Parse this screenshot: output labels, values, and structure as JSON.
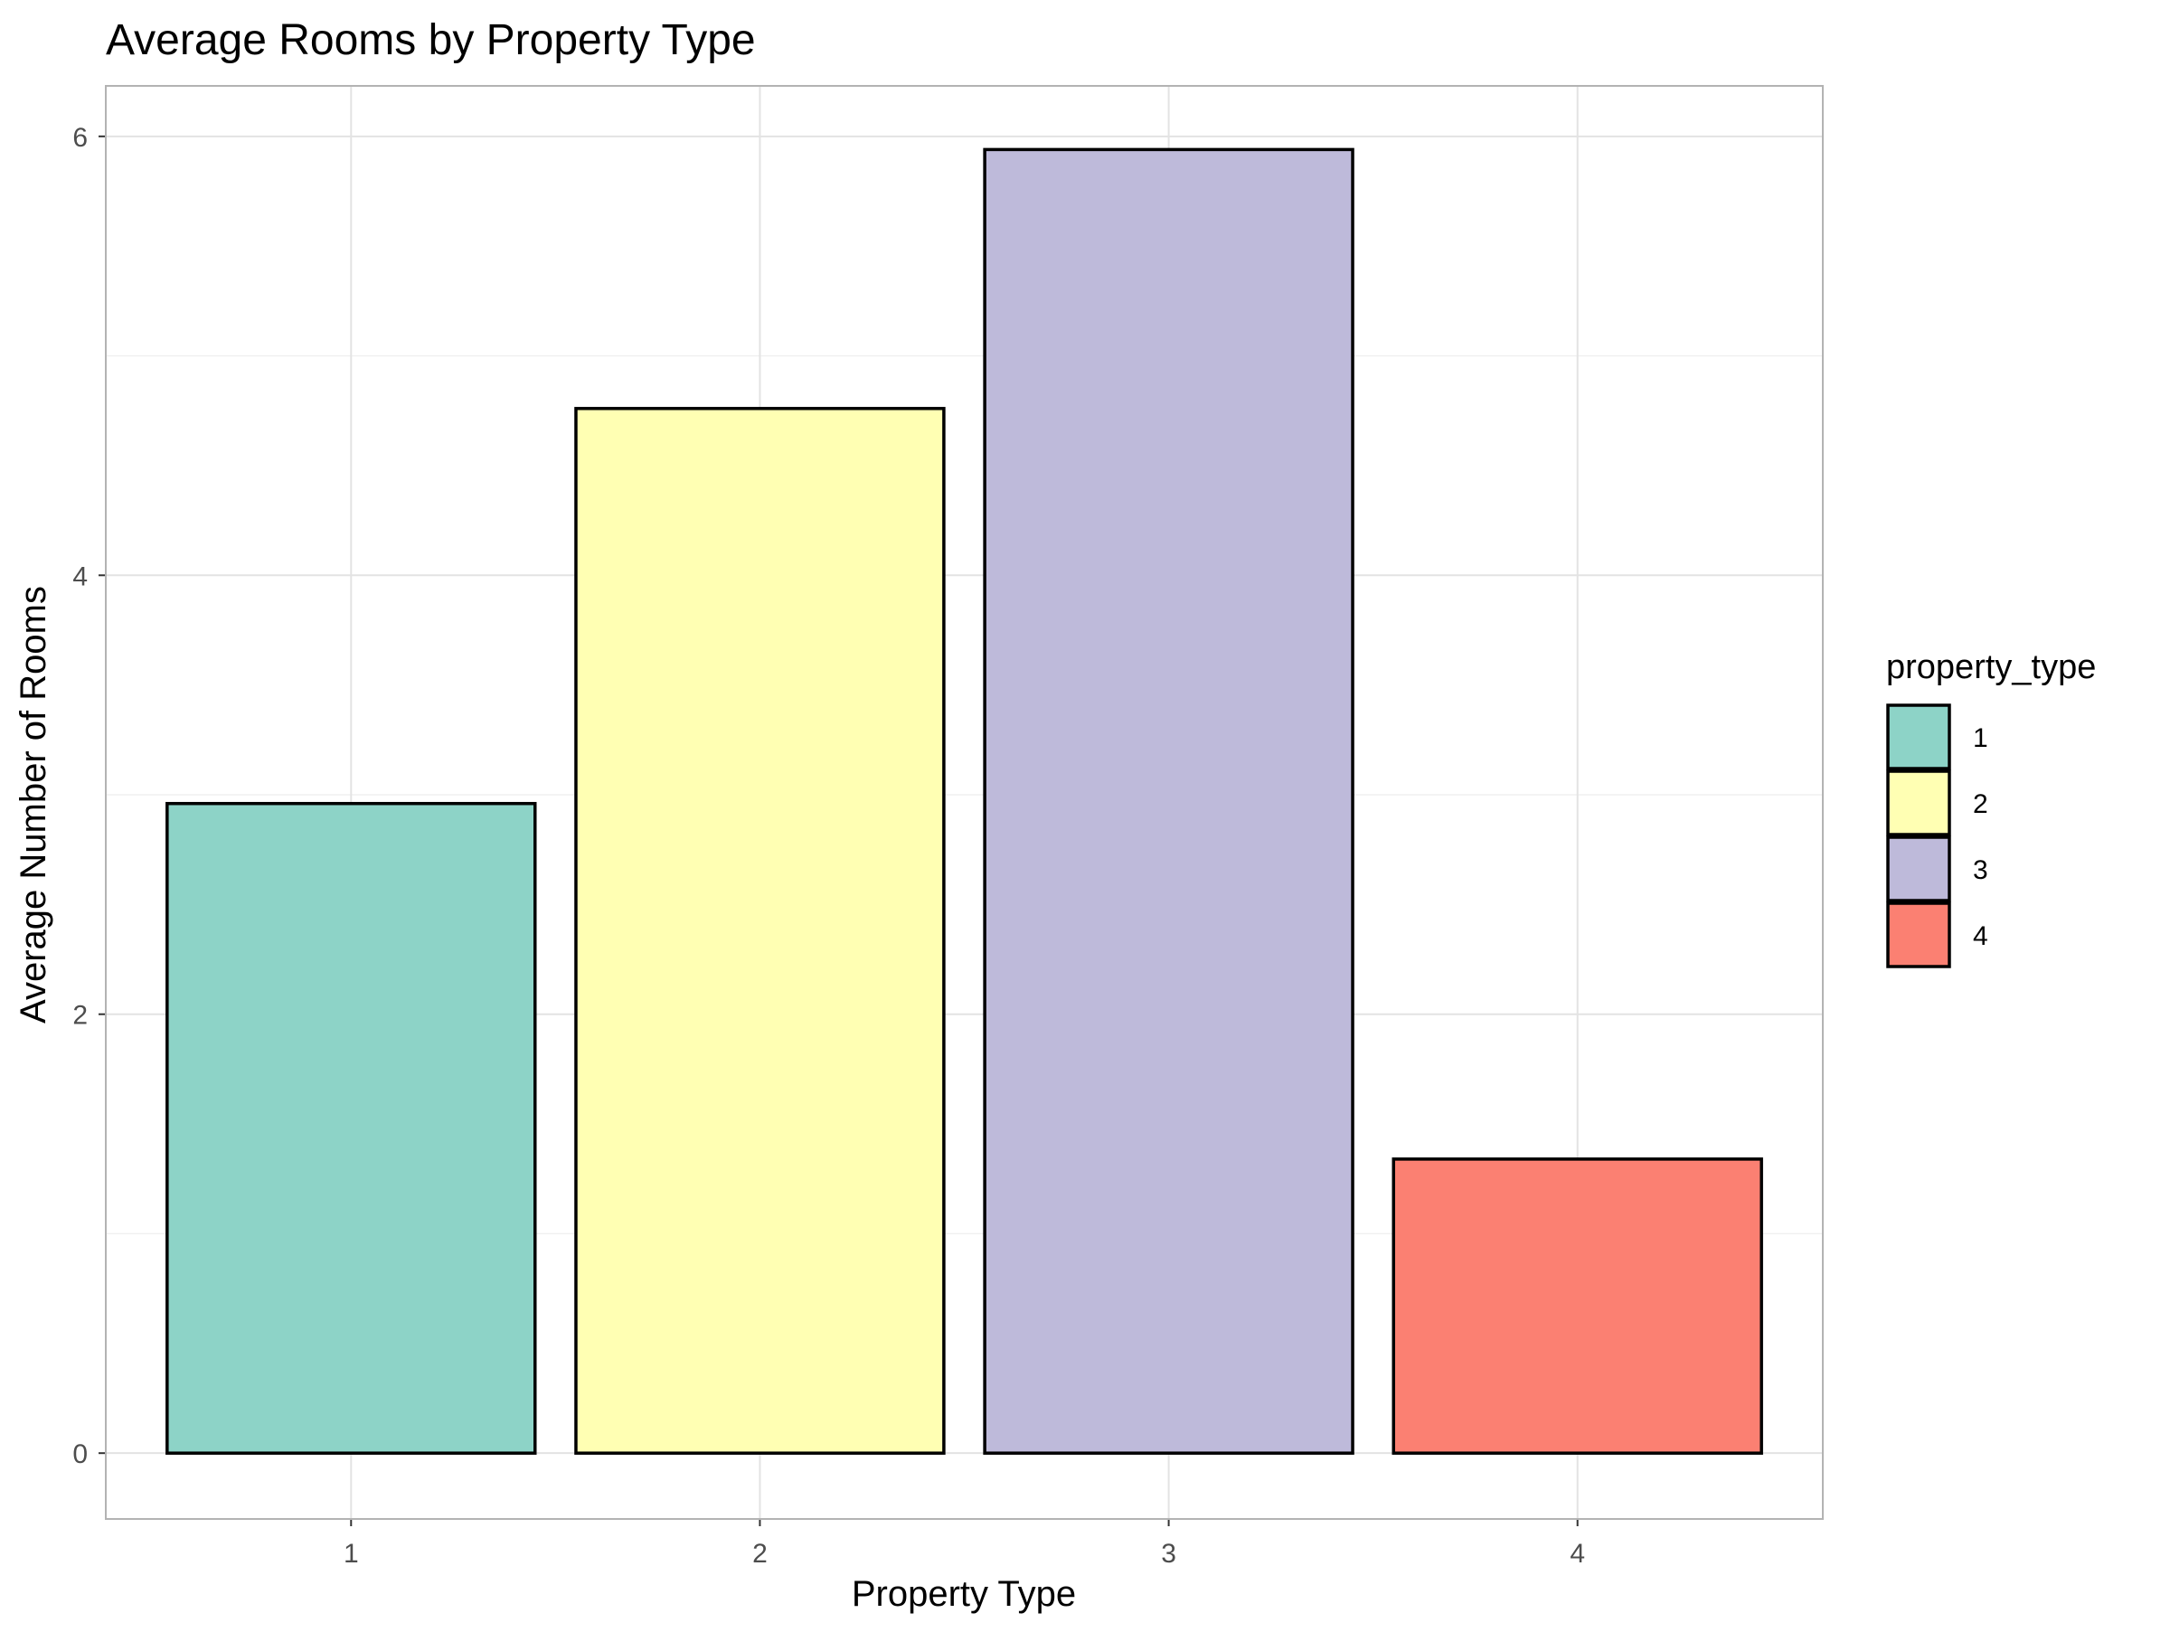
{
  "chart_data": {
    "type": "bar",
    "title": "Average Rooms by Property Type",
    "xlabel": "Property Type",
    "ylabel": "Average Number of Rooms",
    "categories": [
      "1",
      "2",
      "3",
      "4"
    ],
    "values": [
      2.96,
      4.76,
      5.94,
      1.34
    ],
    "colors": [
      "#8DD3C7",
      "#FFFFB3",
      "#BEBADA",
      "#FB8072"
    ],
    "ylim": [
      -0.3,
      6.23
    ],
    "yticks": [
      0,
      2,
      4,
      6
    ],
    "grid": true,
    "legend": {
      "title": "property_type",
      "placement": "right",
      "entries": [
        "1",
        "2",
        "3",
        "4"
      ]
    }
  }
}
